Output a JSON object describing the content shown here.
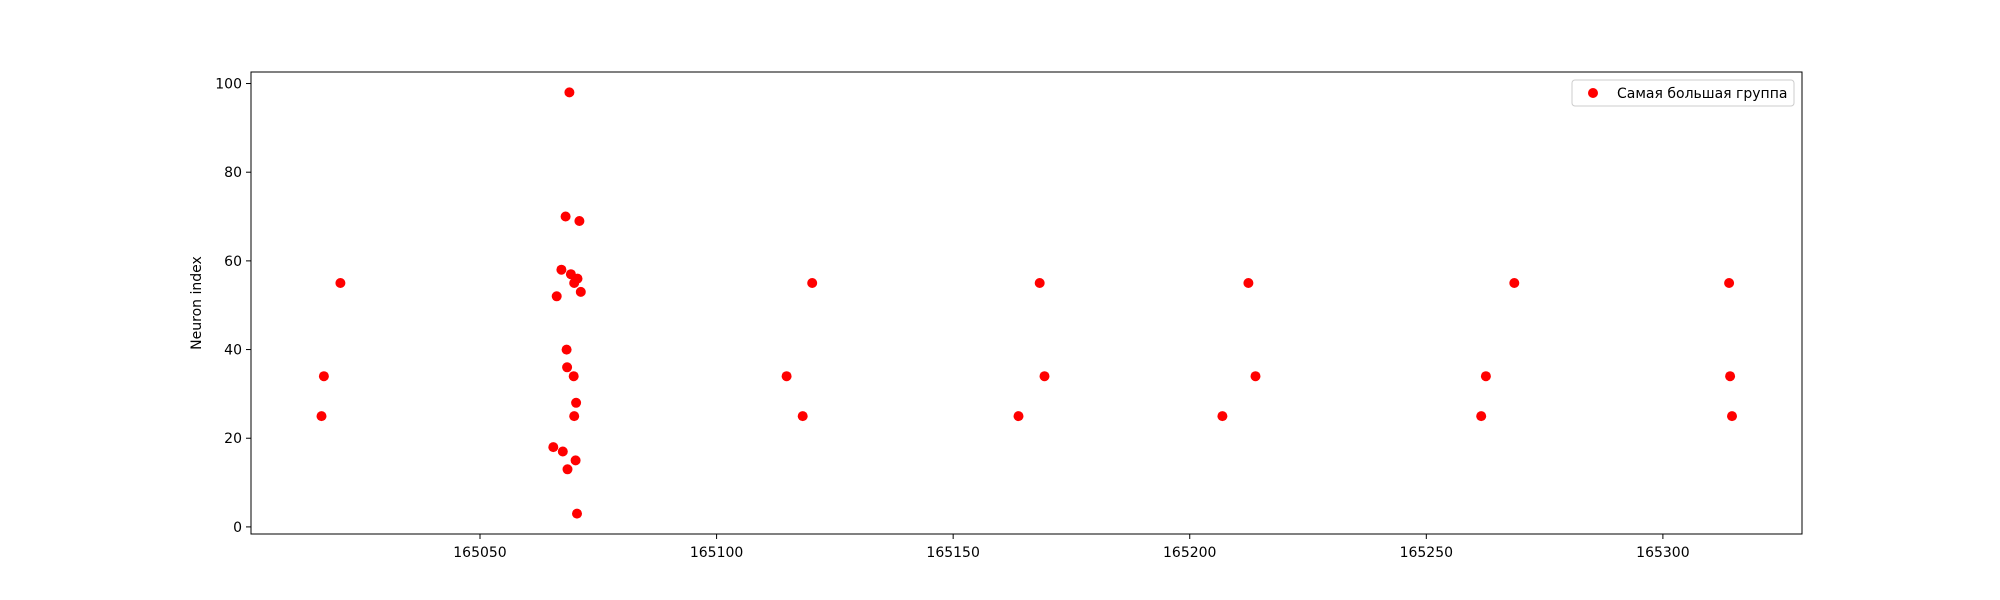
{
  "chart_data": {
    "type": "scatter",
    "title": "",
    "xlabel": "",
    "ylabel": "Neuron index",
    "xlim": [
      165001.6,
      165329.4
    ],
    "ylim": [
      -1.6,
      102.6
    ],
    "xticks": [
      165050,
      165100,
      165150,
      165200,
      165250,
      165300
    ],
    "yticks": [
      0,
      20,
      40,
      60,
      80,
      100
    ],
    "grid": false,
    "legend_position": "upper-right",
    "series": [
      {
        "name": "Самая большая группа",
        "color": "#ff0000",
        "points": [
          [
            165016.5,
            25
          ],
          [
            165017,
            34
          ],
          [
            165020.5,
            55
          ],
          [
            165065.5,
            18
          ],
          [
            165066.2,
            52
          ],
          [
            165067.2,
            58
          ],
          [
            165067.5,
            17
          ],
          [
            165068.1,
            70
          ],
          [
            165068.3,
            40
          ],
          [
            165068.4,
            36
          ],
          [
            165068.5,
            13
          ],
          [
            165068.9,
            98
          ],
          [
            165069.2,
            57
          ],
          [
            165069.8,
            34
          ],
          [
            165069.9,
            55
          ],
          [
            165069.9,
            25
          ],
          [
            165070.2,
            15
          ],
          [
            165070.3,
            28
          ],
          [
            165070.5,
            3
          ],
          [
            165070.6,
            56
          ],
          [
            165071.0,
            69
          ],
          [
            165071.3,
            53
          ],
          [
            165114.8,
            34
          ],
          [
            165118.2,
            25
          ],
          [
            165120.2,
            55
          ],
          [
            165163.8,
            25
          ],
          [
            165168.3,
            55
          ],
          [
            165169.3,
            34
          ],
          [
            165206.9,
            25
          ],
          [
            165212.4,
            55
          ],
          [
            165213.9,
            34
          ],
          [
            165261.6,
            25
          ],
          [
            165262.6,
            34
          ],
          [
            165268.6,
            55
          ],
          [
            165314.0,
            55
          ],
          [
            165314.2,
            34
          ],
          [
            165314.6,
            25
          ]
        ]
      }
    ]
  }
}
